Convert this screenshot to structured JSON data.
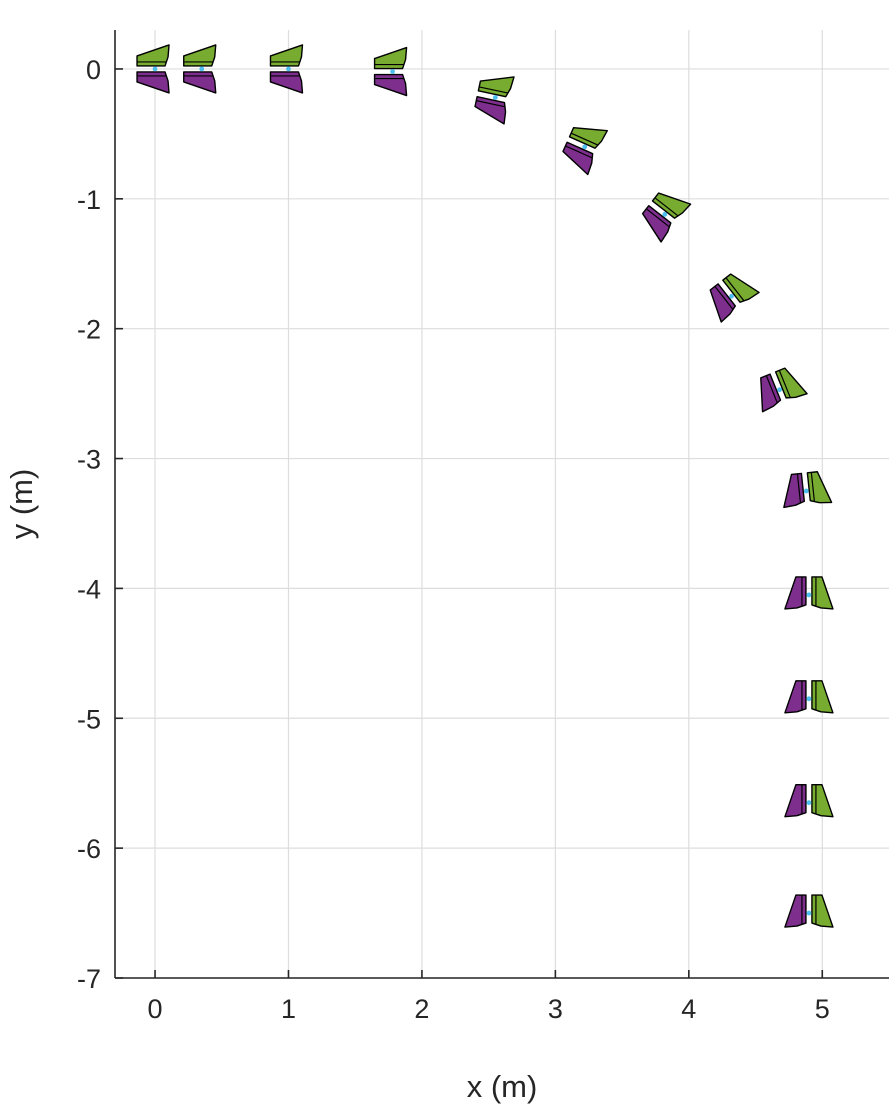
{
  "chart_data": {
    "type": "scatter",
    "title": "",
    "xlabel": "x (m)",
    "ylabel": "y (m)",
    "xlim": [
      -0.3,
      5.5
    ],
    "ylim": [
      -7,
      0.3
    ],
    "xticks": [
      0,
      1,
      2,
      3,
      4,
      5
    ],
    "yticks": [
      0,
      -1,
      -2,
      -3,
      -4,
      -5,
      -6,
      -7
    ],
    "xtick_labels": [
      "0",
      "1",
      "2",
      "3",
      "4",
      "5"
    ],
    "ytick_labels": [
      "0",
      "-1",
      "-2",
      "-3",
      "-4",
      "-5",
      "-6",
      "-7"
    ],
    "grid": true,
    "legend": "none",
    "marker": "two-part glyph",
    "colors": {
      "part_a": "#77AC30",
      "part_b": "#7E2F8E",
      "center": "#4DBEEE",
      "outline": "#000000",
      "grid": "#dddddd",
      "axis": "#262626"
    },
    "points": [
      {
        "x": 0.0,
        "y": 0.0,
        "heading_deg": 0
      },
      {
        "x": 0.35,
        "y": 0.0,
        "heading_deg": 0
      },
      {
        "x": 1.0,
        "y": 0.0,
        "heading_deg": 0
      },
      {
        "x": 1.78,
        "y": -0.02,
        "heading_deg": 0
      },
      {
        "x": 2.55,
        "y": -0.22,
        "heading_deg": -12
      },
      {
        "x": 3.22,
        "y": -0.6,
        "heading_deg": -24
      },
      {
        "x": 3.82,
        "y": -1.12,
        "heading_deg": -38
      },
      {
        "x": 4.32,
        "y": -1.75,
        "heading_deg": -52
      },
      {
        "x": 4.68,
        "y": -2.47,
        "heading_deg": -68
      },
      {
        "x": 4.88,
        "y": -3.25,
        "heading_deg": -84
      },
      {
        "x": 4.9,
        "y": -4.05,
        "heading_deg": -90
      },
      {
        "x": 4.9,
        "y": -4.85,
        "heading_deg": -90
      },
      {
        "x": 4.9,
        "y": -5.65,
        "heading_deg": -90
      },
      {
        "x": 4.9,
        "y": -6.5,
        "heading_deg": -90
      }
    ]
  }
}
